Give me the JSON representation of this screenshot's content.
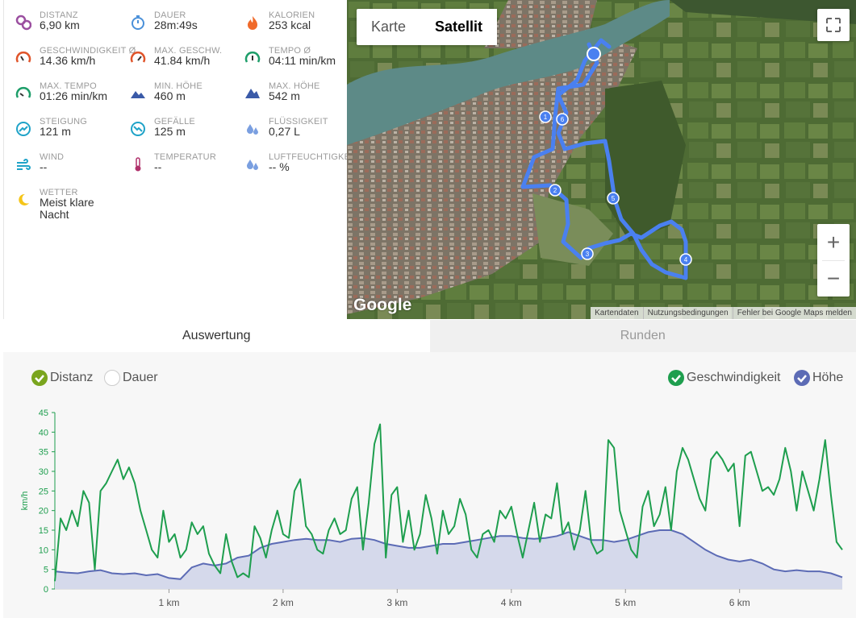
{
  "stats": [
    {
      "label": "DISTANZ",
      "value": "6,90 km",
      "icon": "distance-pin-icon",
      "color": "#9b4fa0"
    },
    {
      "label": "DAUER",
      "value": "28m:49s",
      "icon": "stopwatch-icon",
      "color": "#4a90d9"
    },
    {
      "label": "KALORIEN",
      "value": "253 kcal",
      "icon": "flame-icon",
      "color": "#f06a2a"
    },
    {
      "label": "GESCHWINDIGKEIT Ø",
      "value": "14.36 km/h",
      "icon": "speedometer-icon",
      "color": "#e0552b"
    },
    {
      "label": "MAX. GESCHW.",
      "value": "41.84 km/h",
      "icon": "speedometer-max-icon",
      "color": "#e0552b"
    },
    {
      "label": "TEMPO Ø",
      "value": "04:11 min/km",
      "icon": "tempo-gauge-icon",
      "color": "#1e9e6a"
    },
    {
      "label": "MAX. TEMPO",
      "value": "01:26 min/km",
      "icon": "tempo-max-gauge-icon",
      "color": "#1e9e6a"
    },
    {
      "label": "MIN. HÖHE",
      "value": "460 m",
      "icon": "mountain-low-icon",
      "color": "#3a5aa8"
    },
    {
      "label": "MAX. HÖHE",
      "value": "542 m",
      "icon": "mountain-high-icon",
      "color": "#3a5aa8"
    },
    {
      "label": "STEIGUNG",
      "value": "121 m",
      "icon": "ascent-icon",
      "color": "#1fa3c8"
    },
    {
      "label": "GEFÄLLE",
      "value": "125 m",
      "icon": "descent-icon",
      "color": "#1fa3c8"
    },
    {
      "label": "FLÜSSIGKEIT",
      "value": "0,27 L",
      "icon": "drops-icon",
      "color": "#7a9fe0"
    },
    {
      "label": "WIND",
      "value": "--",
      "icon": "wind-icon",
      "color": "#1fa3c8"
    },
    {
      "label": "TEMPERATUR",
      "value": "--",
      "icon": "thermometer-icon",
      "color": "#b0306a"
    },
    {
      "label": "LUFTFEUCHTIGKEIT",
      "value": "-- %",
      "icon": "humidity-icon",
      "color": "#7a9fe0"
    },
    {
      "label": "WETTER",
      "value": "Meist klare\nNacht",
      "icon": "moon-icon",
      "color": "#f5c518"
    }
  ],
  "map": {
    "toggle": {
      "map_label": "Karte",
      "satellite_label": "Satellit",
      "selected": "Satellit"
    },
    "zoom_in": "+",
    "zoom_out": "−",
    "logo": "Google",
    "attribution": [
      "Kartendaten",
      "Nutzungsbedingungen",
      "Fehler bei Google Maps melden"
    ],
    "route_markers": [
      "1",
      "2",
      "3",
      "4",
      "5",
      "6"
    ],
    "route_color": "#4a80f0"
  },
  "tabs": [
    {
      "label": "Auswertung",
      "active": true
    },
    {
      "label": "Runden",
      "active": false
    }
  ],
  "legend": {
    "left": [
      {
        "label": "Distanz",
        "checked": true,
        "color": "#7aa51e"
      },
      {
        "label": "Dauer",
        "checked": false,
        "color": "#ffffff"
      }
    ],
    "right": [
      {
        "label": "Geschwindigkeit",
        "checked": true,
        "color": "#1e9e4e"
      },
      {
        "label": "Höhe",
        "checked": true,
        "color": "#5c6bb5"
      }
    ]
  },
  "chart_data": {
    "type": "line",
    "ylabel": "km/h",
    "ylim": [
      0,
      45
    ],
    "yticks": [
      0,
      5,
      10,
      15,
      20,
      25,
      30,
      35,
      40,
      45
    ],
    "xlim": [
      0,
      6.9
    ],
    "xticks": [
      {
        "v": 1,
        "label": "1 km"
      },
      {
        "v": 2,
        "label": "2 km"
      },
      {
        "v": 3,
        "label": "3 km"
      },
      {
        "v": 4,
        "label": "4 km"
      },
      {
        "v": 5,
        "label": "5 km"
      },
      {
        "v": 6,
        "label": "6 km"
      }
    ],
    "series": [
      {
        "name": "Geschwindigkeit",
        "kind": "line",
        "color": "#1e9e4e",
        "x": [
          0,
          0.05,
          0.1,
          0.15,
          0.2,
          0.25,
          0.3,
          0.35,
          0.4,
          0.45,
          0.5,
          0.55,
          0.6,
          0.65,
          0.7,
          0.75,
          0.8,
          0.85,
          0.9,
          0.95,
          1.0,
          1.05,
          1.1,
          1.15,
          1.2,
          1.25,
          1.3,
          1.35,
          1.4,
          1.45,
          1.5,
          1.55,
          1.6,
          1.65,
          1.7,
          1.75,
          1.8,
          1.85,
          1.9,
          1.95,
          2.0,
          2.05,
          2.1,
          2.15,
          2.2,
          2.25,
          2.3,
          2.35,
          2.4,
          2.45,
          2.5,
          2.55,
          2.6,
          2.65,
          2.7,
          2.75,
          2.8,
          2.85,
          2.9,
          2.95,
          3.0,
          3.05,
          3.1,
          3.15,
          3.2,
          3.25,
          3.3,
          3.35,
          3.4,
          3.45,
          3.5,
          3.55,
          3.6,
          3.65,
          3.7,
          3.75,
          3.8,
          3.85,
          3.9,
          3.95,
          4.0,
          4.05,
          4.1,
          4.15,
          4.2,
          4.25,
          4.3,
          4.35,
          4.4,
          4.45,
          4.5,
          4.55,
          4.6,
          4.65,
          4.7,
          4.75,
          4.8,
          4.85,
          4.9,
          4.95,
          5.0,
          5.05,
          5.1,
          5.15,
          5.2,
          5.25,
          5.3,
          5.35,
          5.4,
          5.45,
          5.5,
          5.55,
          5.6,
          5.65,
          5.7,
          5.75,
          5.8,
          5.85,
          5.9,
          5.95,
          6.0,
          6.05,
          6.1,
          6.15,
          6.2,
          6.25,
          6.3,
          6.35,
          6.4,
          6.45,
          6.5,
          6.55,
          6.6,
          6.65,
          6.7,
          6.75,
          6.8,
          6.85,
          6.9
        ],
        "y": [
          2,
          18,
          15,
          20,
          16,
          25,
          22,
          5,
          25,
          27,
          30,
          33,
          28,
          31,
          27,
          20,
          15,
          10,
          8,
          20,
          12,
          14,
          8,
          10,
          17,
          14,
          16,
          9,
          6,
          4,
          14,
          7,
          3,
          4,
          3,
          16,
          13,
          8,
          15,
          20,
          14,
          13,
          25,
          28,
          16,
          14,
          10,
          9,
          15,
          18,
          14,
          15,
          23,
          26,
          10,
          22,
          37,
          42,
          8,
          24,
          26,
          12,
          20,
          10,
          14,
          24,
          18,
          9,
          20,
          14,
          16,
          23,
          19,
          10,
          8,
          14,
          15,
          12,
          20,
          18,
          21,
          14,
          8,
          15,
          22,
          12,
          19,
          18,
          27,
          14,
          17,
          10,
          15,
          25,
          12,
          9,
          10,
          38,
          36,
          20,
          15,
          10,
          8,
          21,
          25,
          16,
          19,
          26,
          15,
          30,
          36,
          33,
          28,
          23,
          20,
          33,
          35,
          33,
          30,
          32,
          16,
          34,
          35,
          30,
          25,
          26,
          24,
          28,
          36,
          30,
          20,
          30,
          25,
          20,
          28,
          38,
          24,
          12,
          10
        ],
        "axis": "left"
      },
      {
        "name": "Höhe",
        "kind": "area",
        "color": "#5c6bb5",
        "fill": "#d5d9eb",
        "x": [
          0,
          0.1,
          0.2,
          0.3,
          0.4,
          0.5,
          0.6,
          0.7,
          0.8,
          0.9,
          1.0,
          1.1,
          1.2,
          1.3,
          1.4,
          1.5,
          1.6,
          1.7,
          1.8,
          1.9,
          2.0,
          2.1,
          2.2,
          2.3,
          2.4,
          2.5,
          2.6,
          2.7,
          2.8,
          2.9,
          3.0,
          3.1,
          3.2,
          3.3,
          3.4,
          3.5,
          3.6,
          3.7,
          3.8,
          3.9,
          4.0,
          4.1,
          4.2,
          4.3,
          4.4,
          4.5,
          4.6,
          4.7,
          4.8,
          4.9,
          5.0,
          5.1,
          5.2,
          5.3,
          5.4,
          5.5,
          5.6,
          5.7,
          5.8,
          5.9,
          6.0,
          6.1,
          6.2,
          6.3,
          6.4,
          6.5,
          6.6,
          6.7,
          6.8,
          6.9
        ],
        "y": [
          4.5,
          4.2,
          4.0,
          4.5,
          4.8,
          4.0,
          3.8,
          4.0,
          3.5,
          3.8,
          2.8,
          2.5,
          5.5,
          6.5,
          6.0,
          6.5,
          8.0,
          8.5,
          10.5,
          11.5,
          12.0,
          12.5,
          12.8,
          12.5,
          12.5,
          12.0,
          12.8,
          13.0,
          12.5,
          11.5,
          11.0,
          10.5,
          10.5,
          11.0,
          11.5,
          11.5,
          12.0,
          12.5,
          13.0,
          13.5,
          13.5,
          13.0,
          12.8,
          13.0,
          13.5,
          14.5,
          13.5,
          12.5,
          12.5,
          12.0,
          12.5,
          13.5,
          14.5,
          15.0,
          15.0,
          14.0,
          12.0,
          10.0,
          8.5,
          7.5,
          7.0,
          7.5,
          6.5,
          5.0,
          4.5,
          4.8,
          4.5,
          4.5,
          4.0,
          3.0
        ],
        "axis": "left"
      }
    ]
  }
}
